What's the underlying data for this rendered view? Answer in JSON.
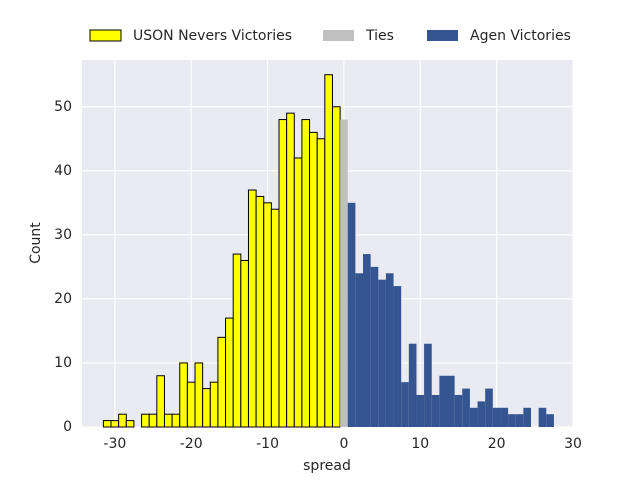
{
  "chart_data": {
    "type": "histogram",
    "xlabel": "spread",
    "ylabel": "Count",
    "xlim": [
      -34.3,
      30
    ],
    "ylim": [
      0,
      57.3
    ],
    "xticks": [
      -30,
      -20,
      -10,
      0,
      10,
      20,
      30
    ],
    "yticks": [
      0,
      10,
      20,
      30,
      40,
      50
    ],
    "grid": true,
    "legend": "top",
    "series": [
      {
        "name": "USON Nevers Victories",
        "color": "#ffff00",
        "edgecolor": "#000000",
        "bins": [
          -31.5,
          -30.5,
          -29.5,
          -28.5,
          -27.5,
          -26.5,
          -25.5,
          -24.5,
          -23.5,
          -22.5,
          -21.5,
          -20.5,
          -19.5,
          -18.5,
          -17.5,
          -16.5,
          -15.5,
          -14.5,
          -13.5,
          -12.5,
          -11.5,
          -10.5,
          -9.5,
          -8.5,
          -7.5,
          -6.5,
          -5.5,
          -4.5,
          -3.5,
          -2.5,
          -1.5,
          -0.5
        ],
        "values": [
          1,
          1,
          2,
          1,
          0,
          2,
          2,
          8,
          2,
          2,
          10,
          7,
          10,
          6,
          7,
          14,
          17,
          27,
          26,
          37,
          36,
          35,
          34,
          48,
          49,
          42,
          48,
          46,
          45,
          55,
          50
        ]
      },
      {
        "name": "Ties",
        "color": "#c0c0c0",
        "bins": [
          -0.5,
          0.5
        ],
        "values": [
          48
        ]
      },
      {
        "name": "Agen Victories",
        "color": "#34558f",
        "bins": [
          0.5,
          1.5,
          2.5,
          3.5,
          4.5,
          5.5,
          6.5,
          7.5,
          8.5,
          9.5,
          10.5,
          11.5,
          12.5,
          13.5,
          14.5,
          15.5,
          16.5,
          17.5,
          18.5,
          19.5,
          20.5,
          21.5,
          22.5,
          23.5,
          24.5,
          25.5,
          26.5,
          27.5
        ],
        "values": [
          35,
          24,
          27,
          25,
          23,
          24,
          22,
          7,
          13,
          5,
          13,
          5,
          8,
          8,
          5,
          6,
          3,
          4,
          6,
          3,
          3,
          2,
          2,
          3,
          0,
          3,
          2
        ]
      }
    ]
  }
}
